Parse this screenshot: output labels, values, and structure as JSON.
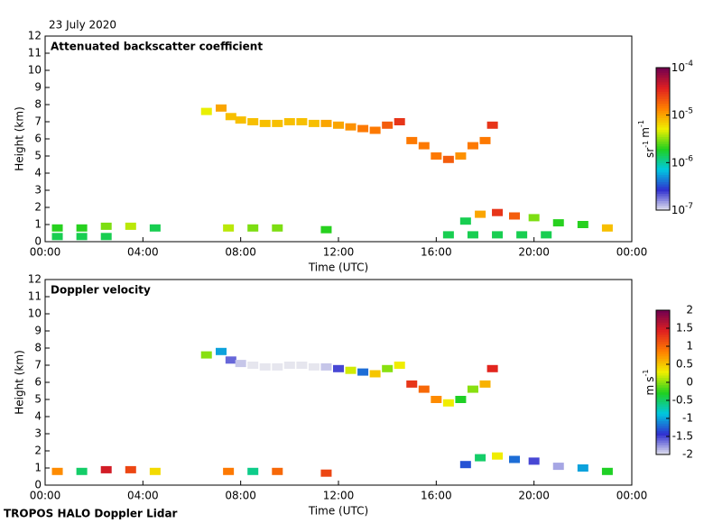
{
  "header": {
    "date": "23 July 2020"
  },
  "footer": {
    "text": "TROPOS HALO Doppler Lidar"
  },
  "chart_data": [
    {
      "type": "time-height",
      "title": "Attenuated backscatter coefficient",
      "xlabel": "Time (UTC)",
      "ylabel": "Height (km)",
      "xlim": [
        0,
        24
      ],
      "xticks": [
        {
          "value": 0,
          "label": "00:00"
        },
        {
          "value": 4,
          "label": "04:00"
        },
        {
          "value": 8,
          "label": "08:00"
        },
        {
          "value": 12,
          "label": "12:00"
        },
        {
          "value": 16,
          "label": "16:00"
        },
        {
          "value": 20,
          "label": "20:00"
        },
        {
          "value": 24,
          "label": "00:00"
        }
      ],
      "ylim": [
        0,
        12
      ],
      "yticks": [
        0,
        1,
        2,
        3,
        4,
        5,
        6,
        7,
        8,
        9,
        10,
        11,
        12
      ],
      "zscale": "log",
      "zlim": [
        1e-07,
        0.0001
      ],
      "zticks": [
        {
          "value": 0.0001,
          "label": "10",
          "exponent": "-4"
        },
        {
          "value": 1e-05,
          "label": "10",
          "exponent": "-5"
        },
        {
          "value": 1e-06,
          "label": "10",
          "exponent": "-6"
        },
        {
          "value": 1e-07,
          "label": "10",
          "exponent": "-7"
        }
      ],
      "zlabel": [
        [
          "sr",
          "-1"
        ],
        [
          "m",
          "-1"
        ]
      ],
      "colormap": [
        "#e6e6ee",
        "#3030d0",
        "#00c8e0",
        "#20d020",
        "#f0f000",
        "#ff8000",
        "#e02020",
        "#700050"
      ],
      "x": [
        6.6,
        7.2,
        7.6,
        8.0,
        8.5,
        9.0,
        9.5,
        10.0,
        10.5,
        11.0,
        11.5,
        12.0,
        12.5,
        13.0,
        13.5,
        14.0,
        14.5,
        15.0,
        15.5,
        16.0,
        16.5,
        17.0,
        17.5,
        18.0,
        18.3,
        0.5,
        1.5,
        2.5,
        3.5,
        4.5,
        7.5,
        8.5,
        9.5,
        11.5,
        17.2,
        17.8,
        18.5,
        19.2,
        20,
        21,
        22,
        23,
        0.5,
        1.5,
        2.5,
        16.5,
        17.5,
        18.5,
        19.5,
        20.5
      ],
      "values": [
        7.6,
        7.8,
        7.3,
        7.1,
        7.0,
        6.9,
        6.9,
        7.0,
        7.0,
        6.9,
        6.9,
        6.8,
        6.7,
        6.6,
        6.5,
        6.8,
        7.0,
        5.9,
        5.6,
        5.0,
        4.8,
        5.0,
        5.6,
        5.9,
        6.8,
        0.8,
        0.8,
        0.9,
        0.9,
        0.8,
        0.8,
        0.8,
        0.8,
        0.7,
        1.2,
        1.6,
        1.7,
        1.5,
        1.4,
        1.1,
        1.0,
        0.8,
        0.3,
        0.3,
        0.3,
        0.4,
        0.4,
        0.4,
        0.4,
        0.4
      ],
      "z": [
        5e-06,
        1e-05,
        8e-06,
        8e-06,
        8e-06,
        8e-06,
        8e-06,
        8e-06,
        8e-06,
        8e-06,
        1e-05,
        1e-05,
        1.2e-05,
        1.5e-05,
        1.5e-05,
        2e-05,
        3e-05,
        1.5e-05,
        1.5e-05,
        1.5e-05,
        2e-05,
        1.2e-05,
        1.5e-05,
        1.5e-05,
        3e-05,
        2e-06,
        2e-06,
        3e-06,
        4e-06,
        1.5e-06,
        4e-06,
        3e-06,
        3e-06,
        2e-06,
        1.5e-06,
        1e-05,
        3e-05,
        2e-05,
        3e-06,
        2e-06,
        2e-06,
        8e-06,
        1.5e-06,
        1.5e-06,
        1.5e-06,
        1.5e-06,
        1.5e-06,
        1.5e-06,
        1.5e-06,
        1.5e-06
      ]
    },
    {
      "type": "time-height",
      "title": "Doppler velocity",
      "xlabel": "Time (UTC)",
      "ylabel": "Height (km)",
      "xlim": [
        0,
        24
      ],
      "xticks": [
        {
          "value": 0,
          "label": "00:00"
        },
        {
          "value": 4,
          "label": "04:00"
        },
        {
          "value": 8,
          "label": "08:00"
        },
        {
          "value": 12,
          "label": "12:00"
        },
        {
          "value": 16,
          "label": "16:00"
        },
        {
          "value": 20,
          "label": "20:00"
        },
        {
          "value": 24,
          "label": "00:00"
        }
      ],
      "ylim": [
        0,
        12
      ],
      "yticks": [
        0,
        1,
        2,
        3,
        4,
        5,
        6,
        7,
        8,
        9,
        10,
        11,
        12
      ],
      "zscale": "linear",
      "zlim": [
        -2,
        2
      ],
      "zticks": [
        2,
        1.5,
        1,
        0.5,
        0,
        -0.5,
        -1,
        -1.5,
        -2
      ],
      "zlabel": [
        [
          "m"
        ],
        [
          "s",
          "-1"
        ]
      ],
      "colormap": [
        "#e6e6ee",
        "#3030d0",
        "#00c8e0",
        "#20d020",
        "#f0f000",
        "#ff8000",
        "#e02020",
        "#700050"
      ],
      "x": [
        6.6,
        7.2,
        7.6,
        8.0,
        8.5,
        9.0,
        9.5,
        10.0,
        10.5,
        11.0,
        11.5,
        12.0,
        12.5,
        13.0,
        13.5,
        14.0,
        14.5,
        15.0,
        15.5,
        16.0,
        16.5,
        17.0,
        17.5,
        18.0,
        18.3,
        0.5,
        1.5,
        2.5,
        3.5,
        4.5,
        7.5,
        8.5,
        9.5,
        11.5,
        17.2,
        17.8,
        18.5,
        19.2,
        20,
        21,
        22,
        23
      ],
      "values": [
        7.6,
        7.8,
        7.3,
        7.1,
        7.0,
        6.9,
        6.9,
        7.0,
        7.0,
        6.9,
        6.9,
        6.8,
        6.7,
        6.6,
        6.5,
        6.8,
        7.0,
        5.9,
        5.6,
        5.0,
        4.8,
        5.0,
        5.6,
        5.9,
        6.8,
        0.8,
        0.8,
        0.9,
        0.9,
        0.8,
        0.8,
        0.8,
        0.8,
        0.7,
        1.2,
        1.6,
        1.7,
        1.5,
        1.4,
        1.1,
        1.0,
        0.8
      ],
      "z": [
        0.0,
        -1.0,
        -1.6,
        -1.9,
        -2,
        -2,
        -2,
        -2,
        -2,
        -2,
        -1.9,
        -1.5,
        0.2,
        -1.2,
        0.5,
        0.0,
        0.3,
        1.3,
        1.0,
        0.8,
        0.3,
        -0.3,
        0.0,
        0.6,
        1.4,
        0.8,
        -0.5,
        1.5,
        1.2,
        0.4,
        0.9,
        -0.6,
        1.0,
        1.2,
        -1.3,
        -0.5,
        0.3,
        -1.2,
        -1.5,
        -1.8,
        -1.0,
        -0.3
      ]
    }
  ]
}
